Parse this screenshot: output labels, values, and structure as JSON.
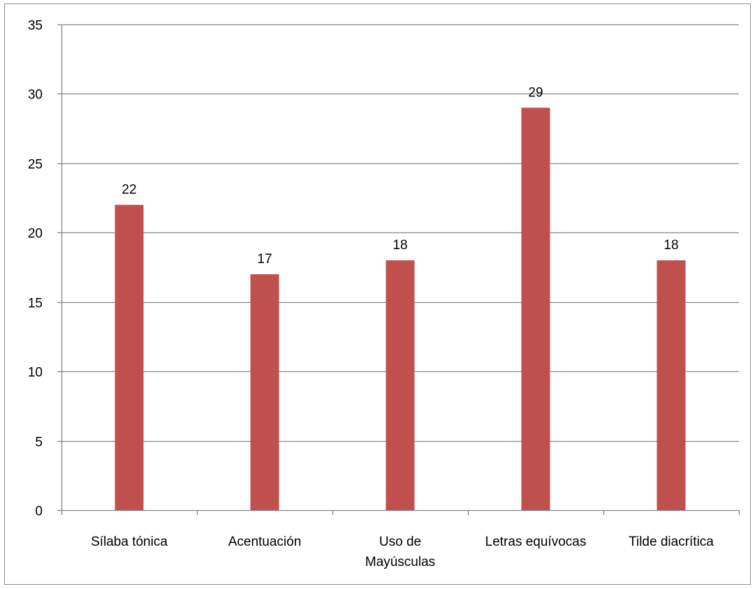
{
  "chart_data": {
    "type": "bar",
    "title": "",
    "xlabel": "",
    "ylabel": "",
    "categories": [
      "Sílaba tónica",
      "Acentuación",
      "Uso de Mayúsculas",
      "Letras equívocas",
      "Tilde diacrítica"
    ],
    "category_lines": [
      [
        "Sílaba tónica"
      ],
      [
        "Acentuación"
      ],
      [
        "Uso de",
        "Mayúsculas"
      ],
      [
        "Letras equívocas"
      ],
      [
        "Tilde diacrítica"
      ]
    ],
    "values": [
      22,
      17,
      18,
      29,
      18
    ],
    "data_labels": [
      "22",
      "17",
      "18",
      "29",
      "18"
    ],
    "ylim": [
      0,
      35
    ],
    "yticks": [
      0,
      5,
      10,
      15,
      20,
      25,
      30,
      35
    ],
    "grid": true,
    "legend": "none",
    "bar_color": "#c0504d",
    "grid_color": "#868686"
  }
}
